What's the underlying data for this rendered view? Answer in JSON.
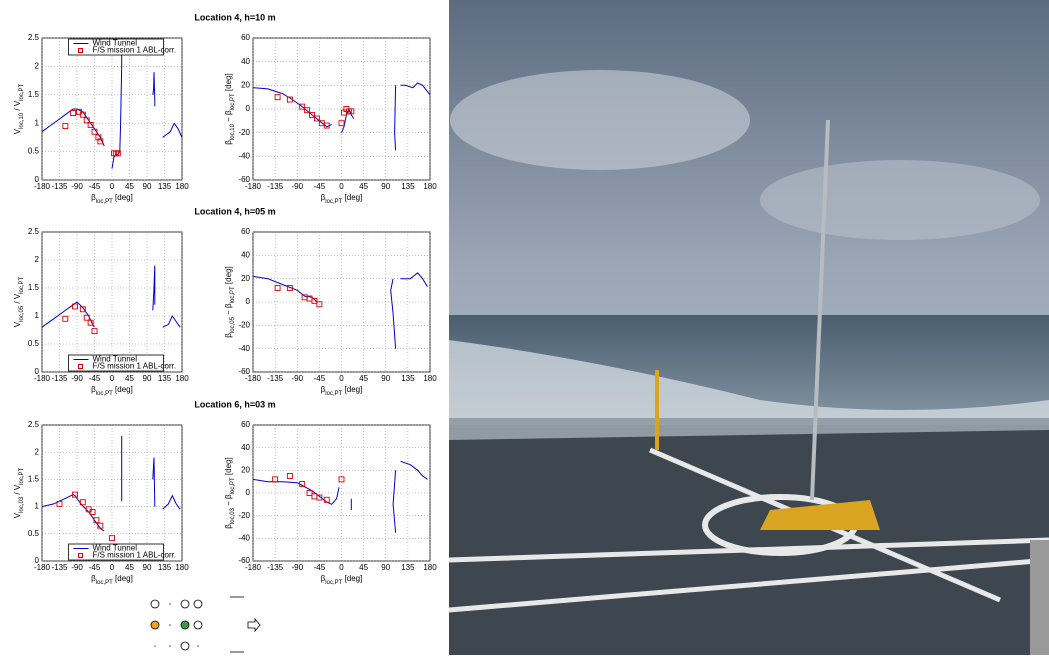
{
  "chart_data": [
    {
      "type": "line",
      "title": "Location 4,  h=10 m",
      "ylabel": [
        "V",
        "loc,10",
        " / V",
        "loc,PT"
      ],
      "xlabel": [
        "β",
        "loc,PT",
        " [deg]"
      ],
      "xlim": [
        -180,
        180
      ],
      "xticks": [
        -180,
        -135,
        -90,
        -45,
        0,
        45,
        90,
        135,
        180
      ],
      "ylim": [
        0,
        2.5
      ],
      "yticks": [
        0,
        0.5,
        1,
        1.5,
        2,
        2.5
      ],
      "grid": true,
      "legend": "top",
      "series": [
        {
          "name": "Wind Tunnel",
          "color": "#0000cc",
          "marker": "line",
          "x": [
            -180,
            -160,
            -140,
            -120,
            -100,
            -90,
            -75,
            -60,
            -45,
            -30,
            -20,
            null,
            0,
            5,
            10,
            15,
            20,
            22,
            25,
            25,
            null,
            105,
            107,
            108,
            110,
            110,
            null,
            130,
            140,
            150,
            160,
            170,
            180
          ],
          "values": [
            0.85,
            0.95,
            1.05,
            1.15,
            1.25,
            1.25,
            1.2,
            1.05,
            0.9,
            0.75,
            0.6,
            null,
            0.2,
            0.4,
            0.45,
            0.45,
            0.5,
            1.0,
            2.0,
            2.5,
            null,
            1.5,
            1.6,
            1.9,
            1.4,
            1.3,
            null,
            0.75,
            0.8,
            0.85,
            1.0,
            0.9,
            0.75
          ]
        },
        {
          "name": "F/S mission 1 ABL-corr.",
          "color": "#dd0000",
          "marker": "square",
          "x": [
            -120,
            -100,
            -85,
            -75,
            -65,
            -55,
            -45,
            -35,
            -30,
            5,
            10,
            15
          ],
          "values": [
            0.95,
            1.18,
            1.2,
            1.15,
            1.05,
            0.97,
            0.85,
            0.75,
            0.68,
            0.47,
            0.47,
            0.47
          ]
        }
      ]
    },
    {
      "type": "line",
      "ylabel": [
        "β",
        "loc,10",
        " − β",
        "loc,PT",
        " [deg]"
      ],
      "xlabel": [
        "β",
        "loc,PT",
        " [deg]"
      ],
      "xlim": [
        -180,
        180
      ],
      "xticks": [
        -180,
        -135,
        -90,
        -45,
        0,
        45,
        90,
        135,
        180
      ],
      "ylim": [
        -60,
        60
      ],
      "yticks": [
        -60,
        -40,
        -20,
        0,
        20,
        40,
        60
      ],
      "grid": true,
      "series": [
        {
          "name": "Wind Tunnel",
          "color": "#0000cc",
          "marker": "line",
          "x": [
            -180,
            -150,
            -120,
            -100,
            -80,
            -60,
            -45,
            -30,
            -20,
            null,
            0,
            5,
            10,
            15,
            20,
            25,
            null,
            110,
            108,
            110,
            null,
            120,
            130,
            145,
            155,
            165,
            180
          ],
          "values": [
            18,
            17,
            13,
            8,
            2,
            -5,
            -10,
            -15,
            -13,
            null,
            -20,
            -15,
            -5,
            0,
            -5,
            -8,
            null,
            20,
            -20,
            -35,
            null,
            20,
            20,
            18,
            22,
            20,
            12
          ]
        },
        {
          "name": "F/S mission 1 ABL-corr.",
          "color": "#dd0000",
          "marker": "square",
          "x": [
            -130,
            -105,
            -80,
            -70,
            -60,
            -50,
            -40,
            -30,
            0,
            5,
            10,
            15,
            20
          ],
          "values": [
            10,
            8,
            2,
            -1,
            -5,
            -8,
            -12,
            -14,
            -12,
            -3,
            0,
            -2,
            -2
          ]
        }
      ]
    },
    {
      "type": "line",
      "title": "Location 4,  h=05 m",
      "ylabel": [
        "V",
        "loc,05",
        " / V",
        "loc,PT"
      ],
      "xlabel": [
        "β",
        "loc,PT",
        " [deg]"
      ],
      "xlim": [
        -180,
        180
      ],
      "xticks": [
        -180,
        -135,
        -90,
        -45,
        0,
        45,
        90,
        135,
        180
      ],
      "ylim": [
        0,
        2.5
      ],
      "yticks": [
        0,
        0.5,
        1,
        1.5,
        2,
        2.5
      ],
      "grid": true,
      "legend": "bottom",
      "series": [
        {
          "name": "Wind Tunnel",
          "color": "#0000cc",
          "marker": "line",
          "x": [
            -180,
            -150,
            -120,
            -100,
            -90,
            -75,
            -60,
            -50,
            -45,
            null,
            105,
            108,
            110,
            110,
            null,
            130,
            145,
            155,
            165,
            175
          ],
          "values": [
            0.8,
            0.95,
            1.1,
            1.2,
            1.25,
            1.15,
            1.0,
            0.85,
            0.8,
            null,
            1.1,
            1.5,
            1.9,
            1.2,
            null,
            0.8,
            0.85,
            1.0,
            0.9,
            0.8
          ]
        },
        {
          "name": "F/S mission 1 ABL-corr.",
          "color": "#dd0000",
          "marker": "square",
          "x": [
            -120,
            -95,
            -75,
            -65,
            -55,
            -45
          ],
          "values": [
            0.95,
            1.17,
            1.12,
            0.97,
            0.88,
            0.73
          ]
        }
      ]
    },
    {
      "type": "line",
      "ylabel": [
        "β",
        "loc,05",
        " − β",
        "loc,PT",
        " [deg]"
      ],
      "xlabel": [
        "β",
        "loc,PT",
        " [deg]"
      ],
      "xlim": [
        -180,
        180
      ],
      "xticks": [
        -180,
        -135,
        -90,
        -45,
        0,
        45,
        90,
        135,
        180
      ],
      "ylim": [
        -60,
        60
      ],
      "yticks": [
        -60,
        -40,
        -20,
        0,
        20,
        40,
        60
      ],
      "grid": true,
      "series": [
        {
          "name": "Wind Tunnel",
          "color": "#0000cc",
          "marker": "line",
          "x": [
            -180,
            -150,
            -120,
            -90,
            -75,
            -60,
            -50,
            null,
            105,
            100,
            105,
            110,
            null,
            120,
            140,
            155,
            165,
            175
          ],
          "values": [
            22,
            20,
            15,
            10,
            5,
            4,
            0,
            null,
            20,
            10,
            -10,
            -40,
            null,
            20,
            20,
            25,
            20,
            13
          ]
        },
        {
          "name": "F/S mission 1 ABL-corr.",
          "color": "#dd0000",
          "marker": "square",
          "x": [
            -130,
            -105,
            -75,
            -65,
            -55,
            -45
          ],
          "values": [
            12,
            12,
            4,
            3,
            1,
            -2
          ]
        }
      ]
    },
    {
      "type": "line",
      "title": "Location 6,  h=03 m",
      "ylabel": [
        "V",
        "loc,03",
        " / V",
        "loc,PT"
      ],
      "xlabel": [
        "β",
        "loc,PT",
        " [deg]"
      ],
      "xlim": [
        -180,
        180
      ],
      "xticks": [
        -180,
        -135,
        -90,
        -45,
        0,
        45,
        90,
        135,
        180
      ],
      "ylim": [
        0,
        2.5
      ],
      "yticks": [
        0,
        0.5,
        1,
        1.5,
        2,
        2.5
      ],
      "grid": true,
      "legend": "bottom",
      "series": [
        {
          "name": "Wind Tunnel",
          "color": "#0000cc",
          "marker": "line",
          "x": [
            -180,
            -150,
            -120,
            -100,
            -95,
            -80,
            -60,
            -45,
            -30,
            -20,
            null,
            25,
            25,
            null,
            105,
            108,
            110,
            null,
            130,
            145,
            155,
            165,
            175
          ],
          "values": [
            1.0,
            1.05,
            1.15,
            1.22,
            1.2,
            1.05,
            0.9,
            0.75,
            0.6,
            0.55,
            null,
            2.3,
            1.1,
            null,
            1.5,
            1.9,
            1.0,
            null,
            0.95,
            1.05,
            1.2,
            1.05,
            0.95
          ]
        },
        {
          "name": "F/S mission 1 ABL-corr.",
          "color": "#dd0000",
          "marker": "square",
          "x": [
            -135,
            -95,
            -75,
            -60,
            -50,
            -40,
            -30,
            0
          ],
          "values": [
            1.05,
            1.22,
            1.08,
            0.95,
            0.9,
            0.75,
            0.65,
            0.42
          ]
        }
      ]
    },
    {
      "type": "line",
      "ylabel": [
        "β",
        "loc,03",
        " − β",
        "loc,PT",
        " [deg]"
      ],
      "xlabel": [
        "β",
        "loc,PT",
        " [deg]"
      ],
      "xlim": [
        -180,
        180
      ],
      "xticks": [
        -180,
        -135,
        -90,
        -45,
        0,
        45,
        90,
        135,
        180
      ],
      "ylim": [
        -60,
        60
      ],
      "yticks": [
        -60,
        -40,
        -20,
        0,
        20,
        40,
        60
      ],
      "grid": true,
      "series": [
        {
          "name": "Wind Tunnel",
          "color": "#0000cc",
          "marker": "line",
          "x": [
            -180,
            -150,
            -120,
            -90,
            -60,
            -45,
            -30,
            -20,
            -10,
            -5,
            null,
            20,
            20,
            null,
            110,
            105,
            110,
            null,
            120,
            140,
            155,
            165,
            175
          ],
          "values": [
            12,
            10,
            10,
            9,
            2,
            -3,
            -8,
            -10,
            -5,
            5,
            null,
            -5,
            -15,
            null,
            20,
            -10,
            -35,
            null,
            28,
            25,
            20,
            15,
            12
          ]
        },
        {
          "name": "F/S mission 1 ABL-corr.",
          "color": "#dd0000",
          "marker": "square",
          "x": [
            -135,
            -105,
            -80,
            -65,
            -55,
            -45,
            -30,
            0
          ],
          "values": [
            12,
            15,
            8,
            0,
            -3,
            -4,
            -6,
            12
          ]
        }
      ]
    }
  ]
}
